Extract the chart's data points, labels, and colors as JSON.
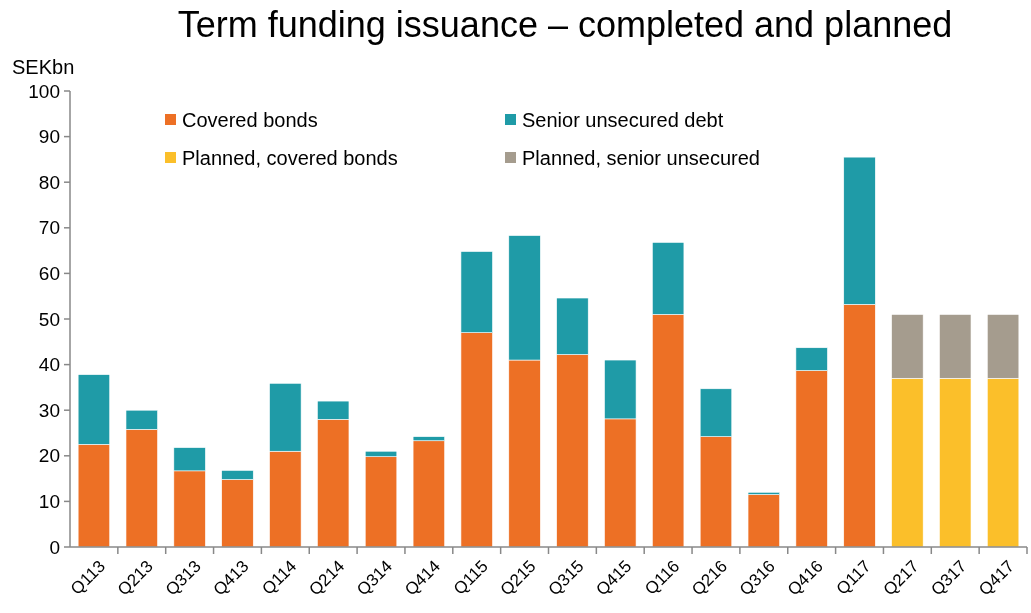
{
  "chart_data": {
    "type": "bar",
    "title": "Term funding issuance – completed and planned",
    "ylabel": "SEKbn",
    "stacked": true,
    "legend": "top",
    "grid": false,
    "categories": [
      "Q113",
      "Q213",
      "Q313",
      "Q413",
      "Q114",
      "Q214",
      "Q314",
      "Q414",
      "Q115",
      "Q215",
      "Q315",
      "Q415",
      "Q116",
      "Q216",
      "Q316",
      "Q416",
      "Q117",
      "Q217",
      "Q317",
      "Q417"
    ],
    "ylim": [
      0,
      100
    ],
    "yticks": [
      0,
      10,
      20,
      30,
      40,
      50,
      60,
      70,
      80,
      90,
      100
    ],
    "series": [
      {
        "name": "Covered bonds",
        "color": "#ed7025",
        "values": [
          22.5,
          25.8,
          16.7,
          14.8,
          21,
          28,
          19.8,
          23.3,
          47,
          41,
          42.2,
          28.1,
          51,
          24.2,
          11.5,
          38.7,
          53.2,
          null,
          null,
          null
        ]
      },
      {
        "name": "Senior unsecured debt",
        "color": "#1f9ba7",
        "values": [
          15.3,
          4.2,
          5.1,
          2,
          14.9,
          4,
          1.2,
          0.9,
          17.8,
          27.3,
          12.4,
          12.9,
          15.8,
          10.5,
          0.5,
          5,
          32.3,
          null,
          null,
          null
        ]
      },
      {
        "name": "Planned, covered bonds",
        "color": "#fbbf2a",
        "values": [
          null,
          null,
          null,
          null,
          null,
          null,
          null,
          null,
          null,
          null,
          null,
          null,
          null,
          null,
          null,
          null,
          null,
          37,
          37,
          37
        ]
      },
      {
        "name": "Planned, senior unsecured",
        "color": "#a59c8e",
        "values": [
          null,
          null,
          null,
          null,
          null,
          null,
          null,
          null,
          null,
          null,
          null,
          null,
          null,
          null,
          null,
          null,
          null,
          14,
          14,
          14
        ]
      }
    ]
  }
}
